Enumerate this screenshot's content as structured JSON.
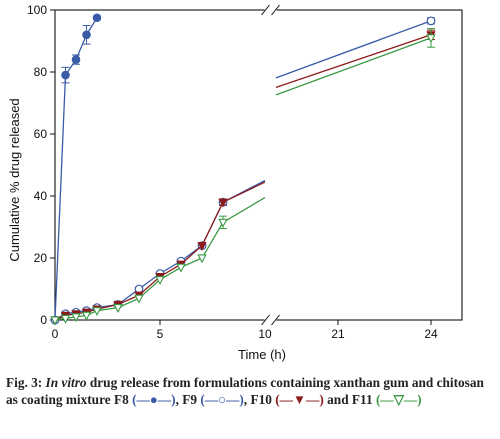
{
  "chart_data": {
    "type": "line",
    "ylabel": "Cumulative % drug released",
    "xlabel": "Time (h)",
    "ylim": [
      0,
      100
    ],
    "yticks": [
      0,
      20,
      40,
      60,
      80,
      100
    ],
    "x_segments": [
      {
        "range": [
          0,
          10
        ],
        "ticks": [
          0,
          5,
          10
        ]
      },
      {
        "range": [
          19,
          25
        ],
        "ticks": [
          21,
          24
        ]
      }
    ],
    "axis_break": true,
    "series": [
      {
        "name": "F8",
        "color": "#3a5ba8",
        "marker": "filled-circle",
        "x": [
          0,
          0.5,
          1,
          1.5,
          2
        ],
        "y": [
          0,
          79,
          84,
          92,
          97.5
        ],
        "err": [
          0,
          2.5,
          1.5,
          3,
          0.5
        ]
      },
      {
        "name": "F9",
        "color": "#3a5ba8",
        "marker": "open-circle",
        "x": [
          0,
          0.5,
          1,
          1.5,
          2,
          3,
          4,
          5,
          6,
          7,
          8,
          10,
          24
        ],
        "y": [
          0,
          2,
          2.5,
          3,
          4,
          5,
          10,
          15,
          19,
          24,
          38,
          45,
          96.5
        ],
        "err": [
          0,
          0,
          0,
          0,
          0,
          0,
          0,
          0,
          0,
          0,
          1,
          0,
          1
        ]
      },
      {
        "name": "F10",
        "color": "#8b1a1a",
        "marker": "filled-triangle-down",
        "x": [
          0,
          0.5,
          1,
          1.5,
          2,
          3,
          4,
          5,
          6,
          7,
          8,
          10,
          24
        ],
        "y": [
          0,
          1.5,
          2,
          2.5,
          3.5,
          5,
          8,
          14,
          18,
          24,
          38,
          44.5,
          92
        ],
        "err": [
          0,
          0,
          0,
          0,
          0,
          0,
          0,
          0,
          0,
          0,
          1,
          0,
          1.5
        ]
      },
      {
        "name": "F11",
        "color": "#3b9a45",
        "marker": "open-triangle-down",
        "x": [
          0,
          0.5,
          1,
          1.5,
          2,
          3,
          4,
          5,
          6,
          7,
          8,
          10,
          24
        ],
        "y": [
          0,
          0.5,
          1,
          1.5,
          3,
          4,
          7,
          13,
          17,
          20,
          31.5,
          39.5,
          91
        ],
        "err": [
          0,
          0,
          0,
          0,
          0,
          0,
          0,
          0,
          0,
          0,
          2,
          0,
          3
        ]
      }
    ]
  },
  "caption": {
    "fig": "Fig. 3:",
    "in_vitro": "In vitro",
    "text1": "drug release from formulations containing xanthan gum and chitosan as coating mixture F8",
    "sym_f8": "(—●—)",
    "sep1": ", F9",
    "sym_f9": "(—○—)",
    "sep2": ", F10",
    "sym_f10": "(—▼—)",
    "sep3": "and F11",
    "sym_f11": "(—▽—)"
  }
}
